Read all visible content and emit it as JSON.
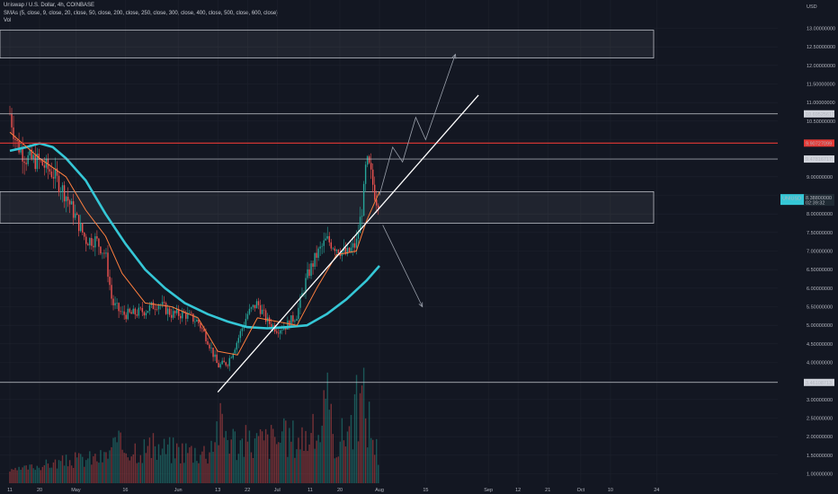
{
  "legend": {
    "symbol_line": "Uniswap / U.S. Dollar, 4h, COINBASE",
    "sma_line": "SMAs (5, close, 9, close, 20, close, 50, close, 200, close, 250, close, 300, close, 400, close, 500, close, 600, close)",
    "vol_line": "Vol"
  },
  "currency_label": "USD",
  "colors": {
    "background": "#131722",
    "grid": "#1e222d",
    "candle_up": "#26a69a",
    "candle_down": "#ef5350",
    "sma_fast": "#ff7f3f",
    "sma_slow": "#35c7d6",
    "price_line": "#ffffff",
    "resistance_line": "#e53935",
    "trendline": "#ffffff",
    "projection": "#9aa0ab"
  },
  "chart_data": {
    "type": "candlestick",
    "symbol": "UNIUSD",
    "timeframe": "4h",
    "exchange": "COINBASE",
    "y_axis": {
      "ticks": [
        "13.00000000",
        "12.50000000",
        "12.00000000",
        "11.50000000",
        "11.00000000",
        "10.50000000",
        "10.00000000",
        "9.50000000",
        "9.00000000",
        "8.50000000",
        "8.00000000",
        "7.50000000",
        "7.00000000",
        "6.50000000",
        "6.00000000",
        "5.50000000",
        "5.00000000",
        "4.50000000",
        "4.00000000",
        "3.50000000",
        "3.00000000",
        "2.50000000",
        "2.00000000",
        "1.50000000",
        "1.00000000"
      ]
    },
    "x_axis": {
      "ticks": [
        "11",
        "20",
        "May",
        "16",
        "Jun",
        "13",
        "22",
        "Jul",
        "11",
        "20",
        "Aug",
        "15",
        "Sep",
        "12",
        "21",
        "Oct",
        "10",
        "24"
      ]
    },
    "price_path": [
      [
        "Apr 11",
        10.7
      ],
      [
        "Apr 13",
        9.9
      ],
      [
        "Apr 16",
        9.5
      ],
      [
        "Apr 20",
        9.4
      ],
      [
        "Apr 24",
        9.1
      ],
      [
        "Apr 28",
        8.5
      ],
      [
        "May 1",
        7.9
      ],
      [
        "May 4",
        7.3
      ],
      [
        "May 7",
        7.3
      ],
      [
        "May 10",
        6.9
      ],
      [
        "May 12",
        5.6
      ],
      [
        "May 15",
        5.3
      ],
      [
        "May 18",
        5.3
      ],
      [
        "May 22",
        5.4
      ],
      [
        "May 26",
        5.6
      ],
      [
        "May 30",
        5.3
      ],
      [
        "Jun 3",
        5.3
      ],
      [
        "Jun 7",
        5.1
      ],
      [
        "Jun 10",
        4.6
      ],
      [
        "Jun 13",
        3.9
      ],
      [
        "Jun 16",
        4.0
      ],
      [
        "Jun 19",
        4.6
      ],
      [
        "Jun 22",
        5.3
      ],
      [
        "Jun 25",
        5.6
      ],
      [
        "Jun 28",
        5.1
      ],
      [
        "Jul 1",
        4.9
      ],
      [
        "Jul 4",
        5.0
      ],
      [
        "Jul 7",
        5.3
      ],
      [
        "Jul 10",
        6.3
      ],
      [
        "Jul 13",
        6.9
      ],
      [
        "Jul 16",
        7.3
      ],
      [
        "Jul 19",
        7.1
      ],
      [
        "Jul 22",
        6.9
      ],
      [
        "Jul 25",
        7.2
      ],
      [
        "Jul 27",
        8.3
      ],
      [
        "Jul 28",
        9.4
      ],
      [
        "Jul 29",
        9.2
      ],
      [
        "Jul 30",
        8.8
      ],
      [
        "Jul 31",
        8.4
      ],
      [
        "Aug 1",
        8.39
      ]
    ],
    "sma_fast_path": [
      [
        "Apr 11",
        10.2
      ],
      [
        "Apr 20",
        9.5
      ],
      [
        "Apr 28",
        9.0
      ],
      [
        "May 4",
        8.1
      ],
      [
        "May 10",
        7.4
      ],
      [
        "May 15",
        6.4
      ],
      [
        "May 22",
        5.6
      ],
      [
        "May 30",
        5.5
      ],
      [
        "Jun 7",
        5.2
      ],
      [
        "Jun 13",
        4.3
      ],
      [
        "Jun 19",
        4.2
      ],
      [
        "Jun 25",
        5.2
      ],
      [
        "Jul 1",
        5.1
      ],
      [
        "Jul 7",
        5.0
      ],
      [
        "Jul 13",
        6.0
      ],
      [
        "Jul 19",
        6.9
      ],
      [
        "Jul 25",
        7.0
      ],
      [
        "Jul 28",
        7.8
      ],
      [
        "Aug 1",
        8.6
      ]
    ],
    "sma_slow_path": [
      [
        "Apr 11",
        9.7
      ],
      [
        "Apr 16",
        9.8
      ],
      [
        "Apr 20",
        9.9
      ],
      [
        "Apr 24",
        9.8
      ],
      [
        "Apr 28",
        9.5
      ],
      [
        "May 4",
        8.9
      ],
      [
        "May 10",
        8.0
      ],
      [
        "May 16",
        7.2
      ],
      [
        "May 22",
        6.5
      ],
      [
        "May 28",
        6.0
      ],
      [
        "Jun 3",
        5.6
      ],
      [
        "Jun 10",
        5.3
      ],
      [
        "Jun 16",
        5.1
      ],
      [
        "Jun 22",
        4.95
      ],
      [
        "Jun 28",
        4.92
      ],
      [
        "Jul 4",
        4.95
      ],
      [
        "Jul 10",
        5.0
      ],
      [
        "Jul 16",
        5.3
      ],
      [
        "Jul 22",
        5.7
      ],
      [
        "Jul 28",
        6.2
      ],
      [
        "Aug 1",
        6.6
      ]
    ],
    "volume": [
      [
        "Apr 20",
        1.3
      ],
      [
        "May 1",
        1.5
      ],
      [
        "May 10",
        1.6
      ],
      [
        "May 12",
        2.0
      ],
      [
        "Jun 10",
        1.8
      ],
      [
        "Jun 13",
        2.8
      ],
      [
        "Jun 19",
        2.1
      ],
      [
        "Jul 13",
        2.4
      ],
      [
        "Jul 16",
        3.4
      ],
      [
        "Jul 19",
        2.0
      ],
      [
        "Jul 27",
        3.7
      ],
      [
        "Jul 28",
        3.3
      ],
      [
        "Aug 1",
        1.5
      ]
    ],
    "horizontal_levels": [
      {
        "value": "10.69525617",
        "style": "gray"
      },
      {
        "value": "9.90727099",
        "style": "red"
      },
      {
        "value": "9.47816717",
        "style": "gray"
      },
      {
        "value": "3.46108713",
        "style": "gray"
      }
    ],
    "zones": [
      {
        "from": 12.2,
        "to": 12.95
      },
      {
        "from": 7.75,
        "to": 8.6
      }
    ],
    "current_price": {
      "label": "UNIUSD",
      "value": "8.38800000",
      "countdown": "02:39:32"
    },
    "trendline": {
      "start": [
        "Jun 13",
        3.2
      ],
      "end": [
        "Aug 31",
        11.2
      ]
    },
    "bull_projection": [
      [
        "Aug 1",
        8.5
      ],
      [
        "Aug 5",
        9.8
      ],
      [
        "Aug 8",
        9.4
      ],
      [
        "Aug 12",
        10.6
      ],
      [
        "Aug 15",
        10.0
      ],
      [
        "Aug 24",
        12.3
      ]
    ],
    "bear_projection": [
      [
        "Aug 2",
        7.7
      ],
      [
        "Aug 14",
        5.5
      ]
    ]
  }
}
